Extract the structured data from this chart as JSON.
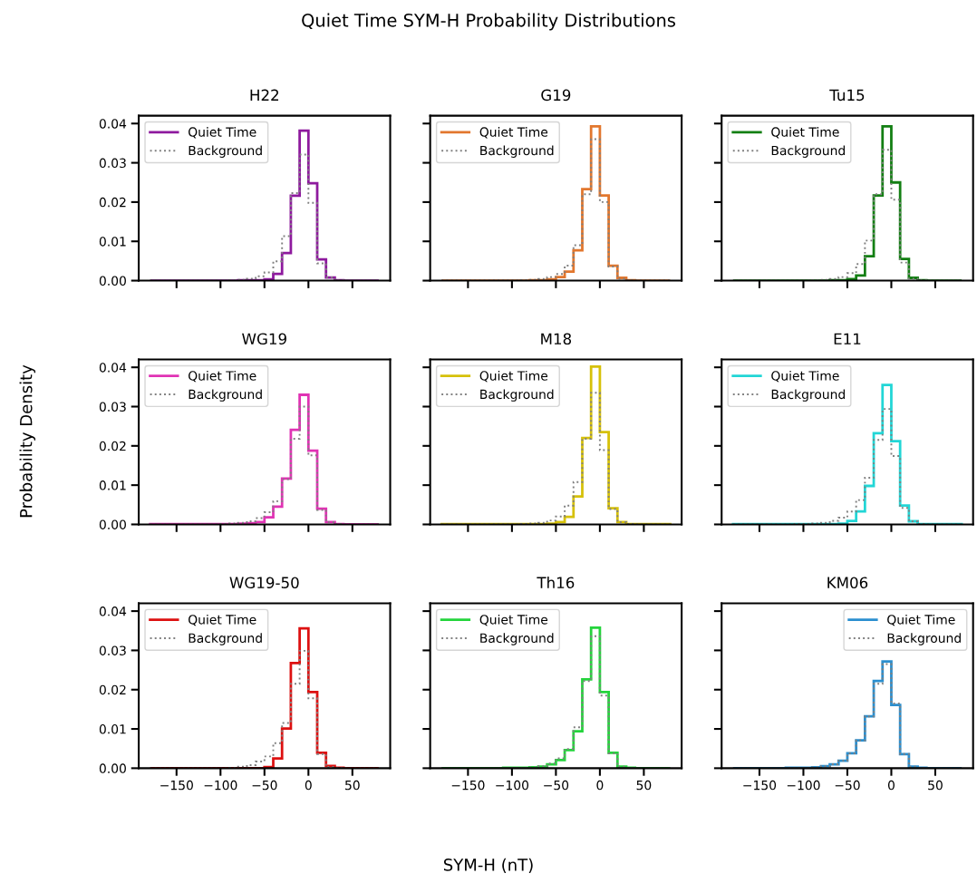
{
  "chart_data": [
    {
      "type": "histogram",
      "title": "H22",
      "annotations": [
        "Quiet Time SYM-H Probability Distributions"
      ],
      "bins": [
        -180,
        -170,
        -160,
        -150,
        -140,
        -130,
        -120,
        -110,
        -100,
        -90,
        -80,
        -70,
        -60,
        -50,
        -40,
        -30,
        -20,
        -10,
        0,
        10,
        20,
        30,
        40,
        50,
        60,
        70,
        80
      ],
      "xlim": [
        -193,
        93
      ],
      "ylim": [
        0,
        0.042
      ],
      "xticks": [
        -150,
        -100,
        -50,
        0,
        50
      ],
      "yticks": [
        {
          "value": 0,
          "label": "0.00"
        },
        {
          "value": 0.01,
          "label": "0.01"
        },
        {
          "value": 0.02,
          "label": "0.02"
        },
        {
          "value": 0.03,
          "label": "0.03"
        },
        {
          "value": 0.04,
          "label": "0.04"
        }
      ],
      "tick_labels": "y",
      "legend": "top left",
      "grid": false,
      "series": [
        {
          "name": "Quiet Time",
          "color": "#8e1a9e",
          "line_style": "solid",
          "values": [
            0,
            0,
            0,
            0,
            0,
            0,
            0,
            0,
            0,
            0,
            0.0001,
            0.0001,
            0.0001,
            0.0003,
            0.0017,
            0.007,
            0.0216,
            0.0382,
            0.0248,
            0.0054,
            0.0008,
            0.0001,
            0,
            0,
            0,
            0
          ]
        },
        {
          "name": "Background",
          "color": "#808080",
          "line_style": "dotted",
          "values": [
            0,
            0,
            0,
            0,
            0,
            0,
            0,
            0,
            0,
            0.0001,
            0.0002,
            0.0005,
            0.0011,
            0.0021,
            0.0049,
            0.0113,
            0.0223,
            0.0321,
            0.0198,
            0.0044,
            0.0008,
            0.0001,
            0,
            0,
            0,
            0
          ]
        }
      ]
    },
    {
      "type": "histogram",
      "title": "G19",
      "bins": [
        -180,
        -170,
        -160,
        -150,
        -140,
        -130,
        -120,
        -110,
        -100,
        -90,
        -80,
        -70,
        -60,
        -50,
        -40,
        -30,
        -20,
        -10,
        0,
        10,
        20,
        30,
        40,
        50,
        60,
        70,
        80
      ],
      "xlim": [
        -193,
        93
      ],
      "ylim": [
        0,
        0.042
      ],
      "xticks": [
        -150,
        -100,
        -50,
        0,
        50
      ],
      "yticks": [
        0,
        0.01,
        0.02,
        0.03,
        0.04
      ],
      "tick_labels": false,
      "legend": "top left",
      "grid": false,
      "series": [
        {
          "name": "Quiet Time",
          "color": "#e2772e",
          "line_style": "solid",
          "values": [
            0,
            0,
            0,
            0,
            0,
            0,
            0,
            0,
            0,
            0,
            0.0001,
            0.0001,
            0.0003,
            0.0009,
            0.0023,
            0.0077,
            0.0233,
            0.0393,
            0.0217,
            0.0038,
            0.0007,
            0.0001,
            0,
            0,
            0,
            0
          ]
        },
        {
          "name": "Background",
          "color": "#808080",
          "line_style": "dotted",
          "values": [
            0,
            0,
            0,
            0,
            0,
            0,
            0,
            0,
            0,
            0.0001,
            0.0002,
            0.0004,
            0.0009,
            0.0017,
            0.0038,
            0.009,
            0.022,
            0.036,
            0.02,
            0.0036,
            0.0005,
            0.0001,
            0,
            0,
            0,
            0
          ]
        }
      ]
    },
    {
      "type": "histogram",
      "title": "Tu15",
      "bins": [
        -180,
        -170,
        -160,
        -150,
        -140,
        -130,
        -120,
        -110,
        -100,
        -90,
        -80,
        -70,
        -60,
        -50,
        -40,
        -30,
        -20,
        -10,
        0,
        10,
        20,
        30,
        40,
        50,
        60,
        70,
        80
      ],
      "xlim": [
        -193,
        93
      ],
      "ylim": [
        0,
        0.042
      ],
      "xticks": [
        -150,
        -100,
        -50,
        0,
        50
      ],
      "yticks": [
        0,
        0.01,
        0.02,
        0.03,
        0.04
      ],
      "tick_labels": false,
      "legend": "top left",
      "grid": false,
      "series": [
        {
          "name": "Quiet Time",
          "color": "#137f13",
          "line_style": "solid",
          "values": [
            0,
            0,
            0,
            0,
            0,
            0,
            0,
            0,
            0,
            0,
            0,
            0.0001,
            0.0001,
            0.0004,
            0.0013,
            0.0062,
            0.0217,
            0.0393,
            0.025,
            0.0055,
            0.0007,
            0.0001,
            0,
            0,
            0,
            0
          ]
        },
        {
          "name": "Background",
          "color": "#808080",
          "line_style": "dotted",
          "values": [
            0,
            0,
            0,
            0,
            0,
            0,
            0,
            0,
            0,
            0.0001,
            0.0002,
            0.0004,
            0.0009,
            0.0019,
            0.0042,
            0.0102,
            0.022,
            0.0333,
            0.0206,
            0.0046,
            0.0005,
            0.0001,
            0,
            0,
            0,
            0
          ]
        }
      ]
    },
    {
      "type": "histogram",
      "title": "WG19",
      "ylabel": "Probability Density",
      "bins": [
        -180,
        -170,
        -160,
        -150,
        -140,
        -130,
        -120,
        -110,
        -100,
        -90,
        -80,
        -70,
        -60,
        -50,
        -40,
        -30,
        -20,
        -10,
        0,
        10,
        20,
        30,
        40,
        50,
        60,
        70,
        80
      ],
      "xlim": [
        -193,
        93
      ],
      "ylim": [
        0,
        0.042
      ],
      "xticks": [
        -150,
        -100,
        -50,
        0,
        50
      ],
      "yticks": [
        {
          "value": 0,
          "label": "0.00"
        },
        {
          "value": 0.01,
          "label": "0.01"
        },
        {
          "value": 0.02,
          "label": "0.02"
        },
        {
          "value": 0.03,
          "label": "0.03"
        },
        {
          "value": 0.04,
          "label": "0.04"
        }
      ],
      "tick_labels": "y",
      "legend": "top left",
      "grid": false,
      "series": [
        {
          "name": "Quiet Time",
          "color": "#e033b4",
          "line_style": "solid",
          "values": [
            0.0001,
            0.0001,
            0.0001,
            0.0001,
            0.0001,
            0.0001,
            0.0001,
            0.0001,
            0.0001,
            0.0001,
            0.0002,
            0.0003,
            0.0006,
            0.0018,
            0.0045,
            0.0117,
            0.0241,
            0.033,
            0.0188,
            0.004,
            0.0006,
            0.0001,
            0,
            0,
            0,
            0
          ]
        },
        {
          "name": "Background",
          "color": "#808080",
          "line_style": "dotted",
          "values": [
            0,
            0,
            0,
            0,
            0,
            0,
            0,
            0,
            0.0001,
            0.0002,
            0.0004,
            0.0008,
            0.0016,
            0.0031,
            0.0059,
            0.0115,
            0.0218,
            0.03,
            0.0176,
            0.0037,
            0.0006,
            0.0001,
            0,
            0,
            0,
            0
          ]
        }
      ]
    },
    {
      "type": "histogram",
      "title": "M18",
      "bins": [
        -180,
        -170,
        -160,
        -150,
        -140,
        -130,
        -120,
        -110,
        -100,
        -90,
        -80,
        -70,
        -60,
        -50,
        -40,
        -30,
        -20,
        -10,
        0,
        10,
        20,
        30,
        40,
        50,
        60,
        70,
        80
      ],
      "xlim": [
        -193,
        93
      ],
      "ylim": [
        0,
        0.042
      ],
      "xticks": [
        -150,
        -100,
        -50,
        0,
        50
      ],
      "yticks": [
        0,
        0.01,
        0.02,
        0.03,
        0.04
      ],
      "tick_labels": false,
      "legend": "top left",
      "grid": false,
      "series": [
        {
          "name": "Quiet Time",
          "color": "#d6c10a",
          "line_style": "solid",
          "values": [
            0.0001,
            0.0001,
            0.0001,
            0.0001,
            0.0001,
            0.0001,
            0.0001,
            0.0001,
            0.0001,
            0.0001,
            0.0001,
            0.0001,
            0.0002,
            0.0006,
            0.0019,
            0.0071,
            0.022,
            0.0402,
            0.0235,
            0.0041,
            0.0006,
            0.0001,
            0.0001,
            0.0001,
            0.0001,
            0.0001
          ]
        },
        {
          "name": "Background",
          "color": "#808080",
          "line_style": "dotted",
          "values": [
            0,
            0,
            0,
            0,
            0,
            0,
            0,
            0,
            0,
            0.0001,
            0.0002,
            0.0004,
            0.001,
            0.002,
            0.0048,
            0.0108,
            0.0218,
            0.0335,
            0.0189,
            0.0039,
            0.0006,
            0.0001,
            0,
            0,
            0,
            0
          ]
        }
      ]
    },
    {
      "type": "histogram",
      "title": "E11",
      "bins": [
        -180,
        -170,
        -160,
        -150,
        -140,
        -130,
        -120,
        -110,
        -100,
        -90,
        -80,
        -70,
        -60,
        -50,
        -40,
        -30,
        -20,
        -10,
        0,
        10,
        20,
        30,
        40,
        50,
        60,
        70,
        80
      ],
      "xlim": [
        -193,
        93
      ],
      "ylim": [
        0,
        0.042
      ],
      "xticks": [
        -150,
        -100,
        -50,
        0,
        50
      ],
      "yticks": [
        0,
        0.01,
        0.02,
        0.03,
        0.04
      ],
      "tick_labels": false,
      "legend": "top left",
      "grid": false,
      "series": [
        {
          "name": "Quiet Time",
          "color": "#22d6d6",
          "line_style": "solid",
          "values": [
            0.0001,
            0.0001,
            0.0001,
            0.0001,
            0.0001,
            0.0001,
            0.0001,
            0.0001,
            0.0001,
            0.0001,
            0.0001,
            0.0001,
            0.0002,
            0.0009,
            0.0033,
            0.0098,
            0.0232,
            0.0355,
            0.0212,
            0.0048,
            0.0008,
            0.0001,
            0.0001,
            0.0001,
            0.0001,
            0.0001
          ]
        },
        {
          "name": "Background",
          "color": "#808080",
          "line_style": "dotted",
          "values": [
            0,
            0,
            0,
            0,
            0,
            0,
            0,
            0.0001,
            0.0001,
            0.0002,
            0.0004,
            0.0009,
            0.0017,
            0.0033,
            0.0062,
            0.0119,
            0.0215,
            0.0294,
            0.0174,
            0.0042,
            0.0008,
            0.0001,
            0,
            0,
            0,
            0
          ]
        }
      ]
    },
    {
      "type": "histogram",
      "title": "WG19-50",
      "bins": [
        -180,
        -170,
        -160,
        -150,
        -140,
        -130,
        -120,
        -110,
        -100,
        -90,
        -80,
        -70,
        -60,
        -50,
        -40,
        -30,
        -20,
        -10,
        0,
        10,
        20,
        30,
        40,
        50,
        60,
        70,
        80
      ],
      "xlim": [
        -193,
        93
      ],
      "ylim": [
        0,
        0.042
      ],
      "xticks": [
        {
          "value": -150,
          "label": "−150"
        },
        {
          "value": -100,
          "label": "−100"
        },
        {
          "value": -50,
          "label": "−50"
        },
        0,
        50
      ],
      "yticks": [
        {
          "value": 0,
          "label": "0.00"
        },
        {
          "value": 0.01,
          "label": "0.01"
        },
        {
          "value": 0.02,
          "label": "0.02"
        },
        {
          "value": 0.03,
          "label": "0.03"
        },
        {
          "value": 0.04,
          "label": "0.04"
        }
      ],
      "legend": "top left",
      "grid": false,
      "series": [
        {
          "name": "Quiet Time",
          "color": "#dd1111",
          "line_style": "solid",
          "values": [
            0,
            0,
            0,
            0,
            0,
            0,
            0,
            0,
            0,
            0,
            0,
            0,
            0,
            0.0003,
            0.0025,
            0.0101,
            0.0268,
            0.0356,
            0.0194,
            0.0039,
            0.0006,
            0.0001,
            0,
            0,
            0,
            0
          ]
        },
        {
          "name": "Background",
          "color": "#808080",
          "line_style": "dotted",
          "values": [
            0,
            0,
            0,
            0,
            0,
            0,
            0,
            0,
            0,
            0.0001,
            0.0004,
            0.0008,
            0.0017,
            0.003,
            0.0064,
            0.0115,
            0.0215,
            0.0299,
            0.0178,
            0.0036,
            0.0003,
            0.0001,
            0,
            0,
            0,
            0
          ]
        }
      ]
    },
    {
      "type": "histogram",
      "title": "Th16",
      "xlabel": "SYM-H (nT)",
      "bins": [
        -180,
        -170,
        -160,
        -150,
        -140,
        -130,
        -120,
        -110,
        -100,
        -90,
        -80,
        -70,
        -60,
        -50,
        -40,
        -30,
        -20,
        -10,
        0,
        10,
        20,
        30,
        40,
        50,
        60,
        70,
        80
      ],
      "xlim": [
        -193,
        93
      ],
      "ylim": [
        0,
        0.042
      ],
      "xticks": [
        {
          "value": -150,
          "label": "−150"
        },
        {
          "value": -100,
          "label": "−100"
        },
        {
          "value": -50,
          "label": "−50"
        },
        0,
        50
      ],
      "yticks": [
        0,
        0.01,
        0.02,
        0.03,
        0.04
      ],
      "tick_labels": "x",
      "legend": "top left",
      "grid": false,
      "series": [
        {
          "name": "Quiet Time",
          "color": "#24d43c",
          "line_style": "solid",
          "values": [
            0,
            0,
            0,
            0,
            0,
            0,
            0,
            0.0001,
            0.0001,
            0.0001,
            0.0002,
            0.0004,
            0.001,
            0.0021,
            0.0046,
            0.0094,
            0.0226,
            0.0358,
            0.0194,
            0.0039,
            0.0004,
            0.0001,
            0,
            0,
            0,
            0
          ]
        },
        {
          "name": "Background",
          "color": "#808080",
          "line_style": "dotted",
          "values": [
            0,
            0,
            0,
            0,
            0,
            0,
            0,
            0,
            0.0001,
            0.0001,
            0.0002,
            0.0005,
            0.0012,
            0.0025,
            0.0049,
            0.0104,
            0.0222,
            0.0336,
            0.0185,
            0.0038,
            0.0004,
            0.0001,
            0,
            0,
            0,
            0
          ]
        }
      ]
    },
    {
      "type": "histogram",
      "title": "KM06",
      "bins": [
        -180,
        -170,
        -160,
        -150,
        -140,
        -130,
        -120,
        -110,
        -100,
        -90,
        -80,
        -70,
        -60,
        -50,
        -40,
        -30,
        -20,
        -10,
        0,
        10,
        20,
        30,
        40,
        50,
        60,
        70,
        80
      ],
      "xlim": [
        -193,
        93
      ],
      "ylim": [
        0,
        0.042
      ],
      "xticks": [
        {
          "value": -150,
          "label": "−150"
        },
        {
          "value": -100,
          "label": "−100"
        },
        {
          "value": -50,
          "label": "−50"
        },
        0,
        50
      ],
      "yticks": [
        0,
        0.01,
        0.02,
        0.03,
        0.04
      ],
      "tick_labels": "x",
      "legend": "top right",
      "grid": false,
      "series": [
        {
          "name": "Quiet Time",
          "color": "#2b8fcf",
          "line_style": "solid",
          "values": [
            0,
            0,
            0,
            0,
            0,
            0,
            0.0001,
            0.0001,
            0.0001,
            0.0002,
            0.0005,
            0.001,
            0.0019,
            0.0038,
            0.0071,
            0.0132,
            0.0222,
            0.0272,
            0.0161,
            0.0036,
            0.0004,
            0.0001,
            0,
            0,
            0,
            0
          ]
        },
        {
          "name": "Background",
          "color": "#808080",
          "line_style": "dotted",
          "values": [
            0,
            0,
            0,
            0,
            0,
            0,
            0.0001,
            0.0001,
            0.0001,
            0.0002,
            0.0005,
            0.001,
            0.0019,
            0.0038,
            0.0071,
            0.0132,
            0.0215,
            0.0265,
            0.0165,
            0.0036,
            0.0004,
            0.0001,
            0,
            0,
            0,
            0
          ]
        }
      ]
    }
  ]
}
